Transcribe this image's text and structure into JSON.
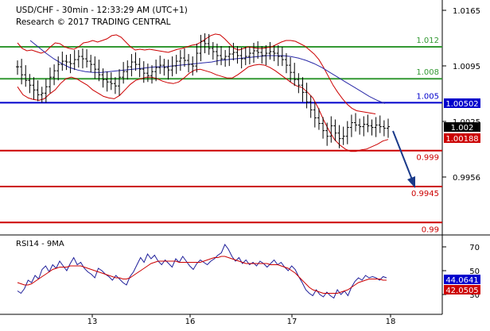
{
  "header": {
    "line1": "USD/CHF - 30min - 12:33:29 AM (UTC+1)",
    "line2": "Research © 2017 TRADING CENTRAL"
  },
  "colors": {
    "green": "#339933",
    "blue": "#0000cc",
    "red": "#cc0000",
    "navy_arrow": "#1a3a8a",
    "price_bar": "#000000",
    "bollinger": "#cc0000",
    "ma_blue": "#2a2aa8",
    "rsi_line": "#1f1f9a",
    "rsi_ma": "#cc0000",
    "tag_blue_bg": "#0000cc",
    "tag_black_bg": "#000000",
    "tag_red_bg": "#cc0000"
  },
  "chart_data": [
    {
      "type": "candlestick",
      "name": "price-panel",
      "ylim": [
        0.9895,
        1.0175
      ],
      "y_ticks": [
        "1.0165",
        "1.0095",
        "1.0025",
        "0.9956"
      ],
      "x_ticks": [
        "13",
        "16",
        "17",
        "18"
      ],
      "levels": [
        {
          "value": 1.012,
          "label": "1.012",
          "color": "green"
        },
        {
          "value": 1.008,
          "label": "1.008",
          "color": "green"
        },
        {
          "value": 1.005,
          "label": "1.005",
          "color": "blue"
        },
        {
          "value": 0.999,
          "label": "0.999",
          "color": "red"
        },
        {
          "value": 0.9945,
          "label": "0.9945",
          "color": "red"
        },
        {
          "value": 0.99,
          "label": "0.99",
          "color": "red"
        }
      ],
      "tags": [
        {
          "value": 1.00502,
          "label": "1.00502",
          "style": "blue"
        },
        {
          "value": 1.002,
          "label": "1.002",
          "style": "black"
        },
        {
          "value": 1.00188,
          "label": "1.00188",
          "style": "red"
        }
      ],
      "closes": [
        1.0095,
        1.0085,
        1.0078,
        1.0072,
        1.0066,
        1.006,
        1.0062,
        1.007,
        1.0082,
        1.009,
        1.0098,
        1.0102,
        1.0101,
        1.0099,
        1.0104,
        1.0108,
        1.0105,
        1.0102,
        1.0098,
        1.0092,
        1.0085,
        1.0079,
        1.0076,
        1.0074,
        1.0071,
        1.0082,
        1.0089,
        1.0095,
        1.0101,
        1.0098,
        1.0092,
        1.0087,
        1.0084,
        1.0089,
        1.0094,
        1.0097,
        1.0094,
        1.0091,
        1.0096,
        1.0102,
        1.0106,
        1.0103,
        1.0098,
        1.0096,
        1.0112,
        1.0127,
        1.0124,
        1.0118,
        1.0114,
        1.0109,
        1.0105,
        1.0108,
        1.0111,
        1.0113,
        1.0109,
        1.0105,
        1.0108,
        1.0112,
        1.0115,
        1.0113,
        1.0109,
        1.0112,
        1.0114,
        1.0112,
        1.0108,
        1.0104,
        1.0097,
        1.0088,
        1.0079,
        1.0072,
        1.0063,
        1.0051,
        1.0041,
        1.0031,
        1.0024,
        1.0015,
        1.0008,
        1.0021,
        1.0012,
        1.0005,
        1.0008,
        1.0019,
        1.0025,
        1.0022,
        1.002,
        1.0023,
        1.0021,
        1.0019,
        1.0022,
        1.002,
        1.0018,
        1.002
      ],
      "bollinger_upper": [
        1.0125,
        1.0118,
        1.0115,
        1.0116,
        1.0114,
        1.0112,
        1.0114,
        1.012,
        1.0125,
        1.0124,
        1.012,
        1.0118,
        1.0117,
        1.012,
        1.0125,
        1.0126,
        1.0128,
        1.0126,
        1.0128,
        1.013,
        1.0134,
        1.0135,
        1.0132,
        1.0126,
        1.012,
        1.0116,
        1.0117,
        1.0116,
        1.0117,
        1.0116,
        1.0115,
        1.0114,
        1.0113,
        1.0115,
        1.0117,
        1.0118,
        1.012,
        1.0122,
        1.0123,
        1.0126,
        1.013,
        1.0134,
        1.0136,
        1.0135,
        1.013,
        1.0124,
        1.0118,
        1.0116,
        1.0118,
        1.012,
        1.0119,
        1.0118,
        1.0118,
        1.0119,
        1.012,
        1.0123,
        1.0126,
        1.0128,
        1.0128,
        1.0127,
        1.0124,
        1.0121,
        1.0116,
        1.0111,
        1.0104,
        1.0094,
        1.0083,
        1.0072,
        1.0063,
        1.0055,
        1.0048,
        1.0043,
        1.004,
        1.0039,
        1.0038,
        1.0037,
        1.0036
      ],
      "bollinger_lower": [
        1.007,
        1.006,
        1.0056,
        1.0054,
        1.0053,
        1.0055,
        1.0061,
        1.0066,
        1.0074,
        1.008,
        1.0082,
        1.008,
        1.0076,
        1.0072,
        1.0066,
        1.0062,
        1.0058,
        1.0056,
        1.0055,
        1.0059,
        1.0066,
        1.0073,
        1.0078,
        1.008,
        1.0082,
        1.0082,
        1.008,
        1.0077,
        1.0075,
        1.0074,
        1.0076,
        1.0081,
        1.0087,
        1.0091,
        1.0092,
        1.009,
        1.0088,
        1.0085,
        1.0083,
        1.0081,
        1.0081,
        1.0085,
        1.009,
        1.0095,
        1.0097,
        1.0098,
        1.0097,
        1.0094,
        1.009,
        1.0085,
        1.008,
        1.0075,
        1.0071,
        1.0069,
        1.0063,
        1.0056,
        1.0043,
        1.0028,
        1.0015,
        1.0004,
        0.9997,
        0.9992,
        0.9989,
        0.9989,
        0.9991,
        0.9992,
        0.9995,
        0.9998,
        1.0002,
        1.0004
      ],
      "moving_average": [
        1.0128,
        1.012,
        1.0112,
        1.0105,
        1.0099,
        1.0094,
        1.0091,
        1.0089,
        1.0088,
        1.0088,
        1.0089,
        1.009,
        1.0091,
        1.0092,
        1.0093,
        1.0094,
        1.0095,
        1.0095,
        1.0096,
        1.0097,
        1.0098,
        1.0099,
        1.01,
        1.0101,
        1.0103,
        1.0104,
        1.0105,
        1.0106,
        1.0107,
        1.0108,
        1.0109,
        1.0109,
        1.0109,
        1.0108,
        1.0106,
        1.0103,
        1.0099,
        1.0094,
        1.0088,
        1.0082,
        1.0076,
        1.007,
        1.0064,
        1.0058,
        1.0053,
        1.0049
      ]
    },
    {
      "type": "line",
      "name": "rsi-panel",
      "title": "RSI14 - 9MA",
      "ylim": [
        20,
        80
      ],
      "y_ticks": [
        "70",
        "50",
        "30"
      ],
      "tags": [
        {
          "value": 44.0641,
          "label": "44.0641",
          "style": "blue"
        },
        {
          "value": 42.0505,
          "label": "42.0505",
          "style": "red"
        }
      ],
      "series": [
        {
          "color": "blue",
          "values": [
            33,
            31,
            35,
            42,
            40,
            46,
            43,
            51,
            54,
            49,
            55,
            52,
            58,
            54,
            50,
            56,
            61,
            55,
            57,
            52,
            49,
            47,
            44,
            52,
            50,
            47,
            45,
            42,
            46,
            43,
            40,
            38,
            45,
            49,
            55,
            61,
            57,
            64,
            60,
            63,
            58,
            55,
            59,
            56,
            53,
            60,
            57,
            62,
            58,
            54,
            51,
            56,
            59,
            57,
            55,
            58,
            60,
            63,
            65,
            72,
            68,
            62,
            58,
            61,
            56,
            59,
            55,
            57,
            54,
            58,
            56,
            53,
            56,
            59,
            55,
            57,
            53,
            50,
            54,
            51,
            45,
            40,
            34,
            31,
            29,
            34,
            30,
            28,
            32,
            29,
            27,
            34,
            30,
            33,
            29,
            36,
            41,
            44,
            42,
            46,
            44,
            45,
            44,
            42,
            45,
            44
          ]
        },
        {
          "color": "red",
          "values": [
            40,
            39,
            38,
            38,
            39,
            41,
            43,
            45,
            47,
            49,
            51,
            52,
            53,
            53,
            53,
            54,
            54,
            54,
            54,
            53,
            52,
            51,
            50,
            49,
            48,
            47,
            46,
            45,
            44,
            44,
            43,
            43,
            44,
            46,
            48,
            50,
            52,
            54,
            56,
            57,
            58,
            58,
            58,
            58,
            58,
            58,
            57,
            57,
            57,
            57,
            57,
            57,
            57,
            58,
            59,
            60,
            61,
            61,
            62,
            62,
            61,
            60,
            59,
            58,
            57,
            56,
            56,
            56,
            56,
            56,
            56,
            56,
            55,
            55,
            55,
            54,
            53,
            52,
            50,
            48,
            45,
            42,
            39,
            36,
            34,
            33,
            32,
            31,
            31,
            31,
            31,
            31,
            32,
            33,
            34,
            36,
            38,
            40,
            41,
            42,
            43,
            43,
            43,
            43,
            42,
            42
          ]
        }
      ]
    }
  ]
}
